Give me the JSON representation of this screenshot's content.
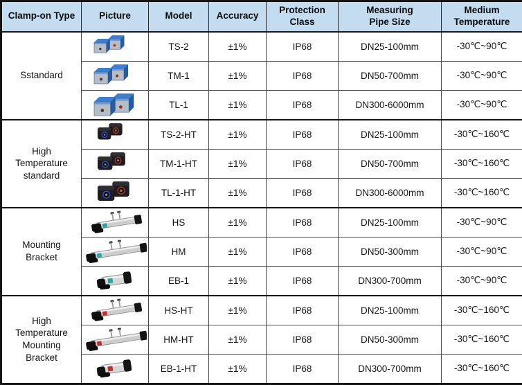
{
  "table": {
    "columns": [
      {
        "key": "type",
        "label": "Clamp-on Type"
      },
      {
        "key": "picture",
        "label": "Picture"
      },
      {
        "key": "model",
        "label": "Model"
      },
      {
        "key": "accuracy",
        "label": "Accuracy"
      },
      {
        "key": "protection",
        "label": "Protection\nClass"
      },
      {
        "key": "pipe",
        "label": "Measuring\nPipe Size"
      },
      {
        "key": "temperature",
        "label": "Medium\nTemperature"
      }
    ],
    "groups": [
      {
        "label": "Sstandard",
        "rows": [
          {
            "picture": "blue-transducer-pair-small",
            "model": "TS-2",
            "accuracy": "±1%",
            "protection": "IP68",
            "pipe": "DN25-100mm",
            "temperature": "-30℃~90℃"
          },
          {
            "picture": "blue-transducer-pair-medium",
            "model": "TM-1",
            "accuracy": "±1%",
            "protection": "IP68",
            "pipe": "DN50-700mm",
            "temperature": "-30℃~90℃"
          },
          {
            "picture": "blue-transducer-pair-large",
            "model": "TL-1",
            "accuracy": "±1%",
            "protection": "IP68",
            "pipe": "DN300-6000mm",
            "temperature": "-30℃~90℃"
          }
        ]
      },
      {
        "label": "High\nTemperature\nstandard",
        "rows": [
          {
            "picture": "black-transducer-pair-small",
            "model": "TS-2-HT",
            "accuracy": "±1%",
            "protection": "IP68",
            "pipe": "DN25-100mm",
            "temperature": "-30℃~160℃"
          },
          {
            "picture": "black-transducer-pair-medium",
            "model": "TM-1-HT",
            "accuracy": "±1%",
            "protection": "IP68",
            "pipe": "DN50-700mm",
            "temperature": "-30℃~160℃"
          },
          {
            "picture": "black-transducer-pair-large",
            "model": "TL-1-HT",
            "accuracy": "±1%",
            "protection": "IP68",
            "pipe": "DN300-6000mm",
            "temperature": "-30℃~160℃"
          }
        ]
      },
      {
        "label": "Mounting\nBracket",
        "rows": [
          {
            "picture": "bracket-rail-teal",
            "model": "HS",
            "accuracy": "±1%",
            "protection": "IP68",
            "pipe": "DN25-100mm",
            "temperature": "-30℃~90℃"
          },
          {
            "picture": "bracket-rail-long-teal",
            "model": "HM",
            "accuracy": "±1%",
            "protection": "IP68",
            "pipe": "DN50-300mm",
            "temperature": "-30℃~90℃"
          },
          {
            "picture": "bracket-compact-teal",
            "model": "EB-1",
            "accuracy": "±1%",
            "protection": "IP68",
            "pipe": "DN300-700mm",
            "temperature": "-30℃~90℃"
          }
        ]
      },
      {
        "label": "High\nTemperature\nMounting\nBracket",
        "rows": [
          {
            "picture": "bracket-rail-red",
            "model": "HS-HT",
            "accuracy": "±1%",
            "protection": "IP68",
            "pipe": "DN25-100mm",
            "temperature": "-30℃~160℃"
          },
          {
            "picture": "bracket-rail-long-red",
            "model": "HM-HT",
            "accuracy": "±1%",
            "protection": "IP68",
            "pipe": "DN50-300mm",
            "temperature": "-30℃~160℃"
          },
          {
            "picture": "bracket-compact-red",
            "model": "EB-1-HT",
            "accuracy": "±1%",
            "protection": "IP68",
            "pipe": "DN300-700mm",
            "temperature": "-30℃~160℃"
          }
        ]
      }
    ]
  },
  "colors": {
    "header_bg": "#c3dcf0",
    "border_outer": "#151515",
    "border_inner": "#4a4a4a",
    "sensor_blue_top": "#3b7ed2",
    "sensor_blue_side": "#275b9f",
    "sensor_front_gray": "#b7bdc5",
    "sensor_black": "#1d1d20",
    "ring_blue": "#2e4fd8",
    "ring_red": "#b33524",
    "bracket_label_teal": "#2aa5a0",
    "bracket_label_red": "#c03030"
  }
}
